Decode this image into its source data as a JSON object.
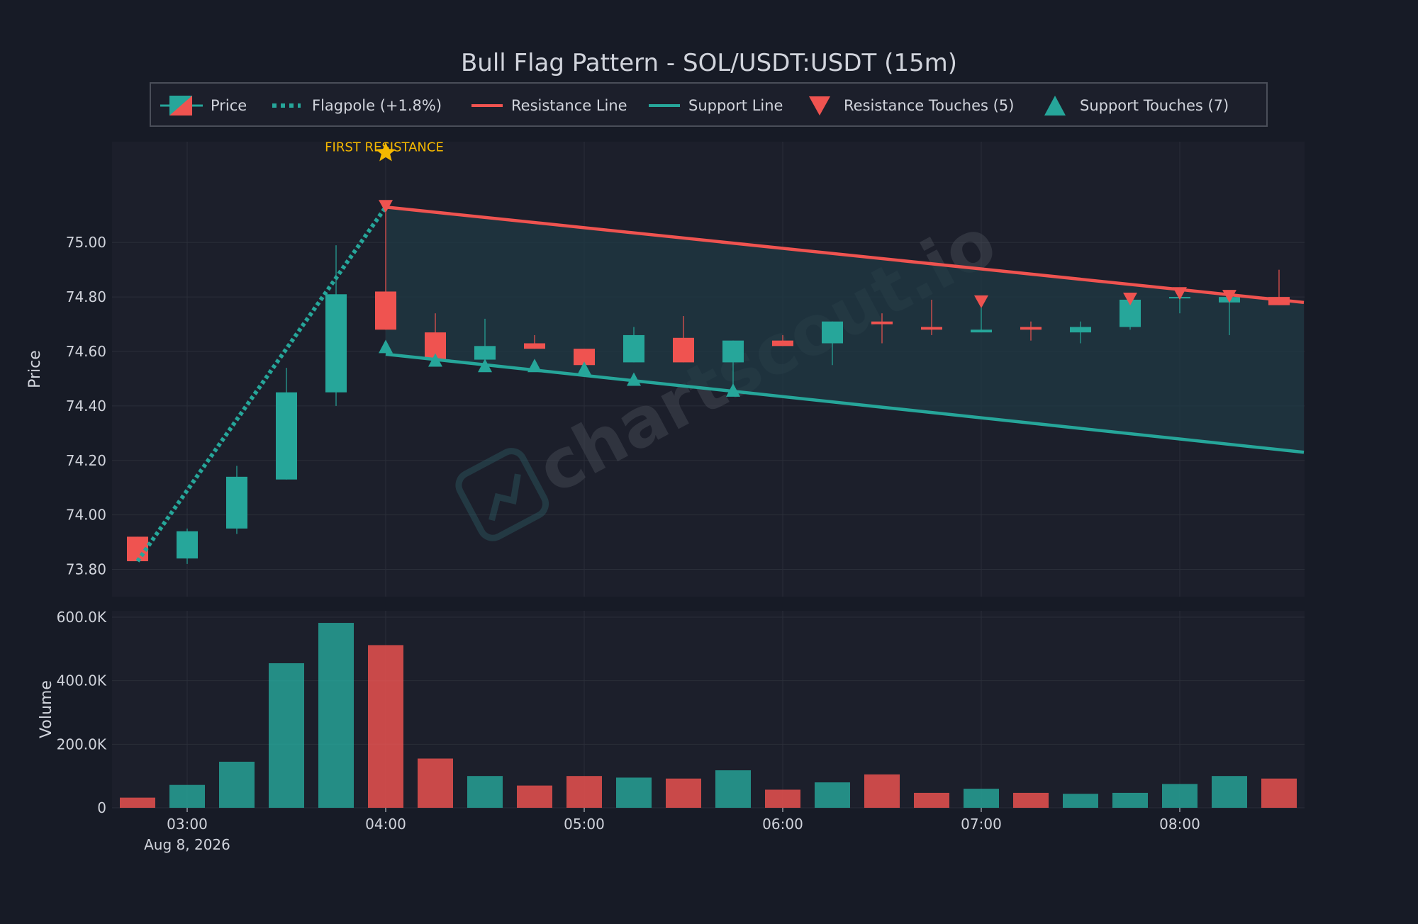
{
  "chart_data": {
    "type": "candlestick",
    "title": "Bull Flag Pattern - SOL/USDT:USDT (15m)",
    "ylabel": "Price",
    "volume_label": "Volume",
    "date_label": "Aug 8, 2026",
    "ylim": [
      73.7,
      75.37
    ],
    "volume_ylim": [
      0,
      620000
    ],
    "y_ticks": [
      {
        "value": 73.8,
        "label": "73.80"
      },
      {
        "value": 74.0,
        "label": "74.00"
      },
      {
        "value": 74.2,
        "label": "74.20"
      },
      {
        "value": 74.4,
        "label": "74.40"
      },
      {
        "value": 74.6,
        "label": "74.60"
      },
      {
        "value": 74.8,
        "label": "74.80"
      },
      {
        "value": 75.0,
        "label": "75.00"
      }
    ],
    "volume_ticks": [
      {
        "value": 0,
        "label": "0"
      },
      {
        "value": 200000,
        "label": "200.0K"
      },
      {
        "value": 400000,
        "label": "400.0K"
      },
      {
        "value": 600000,
        "label": "600.0K"
      }
    ],
    "x_ticks": [
      "03:00",
      "04:00",
      "05:00",
      "06:00",
      "07:00",
      "08:00"
    ],
    "legend": [
      {
        "key": "price",
        "label": "Price"
      },
      {
        "key": "flagpole",
        "label": "Flagpole (+1.8%)"
      },
      {
        "key": "resistance",
        "label": "Resistance Line"
      },
      {
        "key": "support",
        "label": "Support Line"
      },
      {
        "key": "res_touch",
        "label": "Resistance Touches (5)"
      },
      {
        "key": "sup_touch",
        "label": "Support Touches (7)"
      }
    ],
    "annotation": {
      "label": "FIRST RESISTANCE",
      "time": "04:00",
      "price": 75.33
    },
    "watermark": "chartscout.io",
    "colors": {
      "background": "#171b26",
      "panel": "#1c1f2b",
      "bull": "#26a69a",
      "bear": "#ef5350",
      "grid": "#2a2e39",
      "text": "#d1d4dc",
      "annotation": "#f5b800",
      "flag_fill": "#1f3a44"
    },
    "candles": [
      {
        "time": "02:45",
        "open": 73.92,
        "high": 73.92,
        "low": 73.83,
        "close": 73.83,
        "volume": 32000
      },
      {
        "time": "03:00",
        "open": 73.84,
        "high": 73.95,
        "low": 73.82,
        "close": 73.94,
        "volume": 72000
      },
      {
        "time": "03:15",
        "open": 73.95,
        "high": 74.18,
        "low": 73.93,
        "close": 74.14,
        "volume": 145000
      },
      {
        "time": "03:30",
        "open": 74.13,
        "high": 74.54,
        "low": 74.13,
        "close": 74.45,
        "volume": 455000
      },
      {
        "time": "03:45",
        "open": 74.45,
        "high": 74.99,
        "low": 74.4,
        "close": 74.81,
        "volume": 582000
      },
      {
        "time": "04:00",
        "open": 74.82,
        "high": 75.13,
        "low": 74.68,
        "close": 74.68,
        "volume": 512000
      },
      {
        "time": "04:15",
        "open": 74.67,
        "high": 74.74,
        "low": 74.57,
        "close": 74.57,
        "volume": 155000
      },
      {
        "time": "04:30",
        "open": 74.57,
        "high": 74.72,
        "low": 74.55,
        "close": 74.62,
        "volume": 100000
      },
      {
        "time": "04:45",
        "open": 74.63,
        "high": 74.66,
        "low": 74.61,
        "close": 74.61,
        "volume": 70000
      },
      {
        "time": "05:00",
        "open": 74.61,
        "high": 74.61,
        "low": 74.55,
        "close": 74.55,
        "volume": 100000
      },
      {
        "time": "05:15",
        "open": 74.56,
        "high": 74.69,
        "low": 74.56,
        "close": 74.66,
        "volume": 95000
      },
      {
        "time": "05:30",
        "open": 74.65,
        "high": 74.73,
        "low": 74.56,
        "close": 74.56,
        "volume": 92000
      },
      {
        "time": "05:45",
        "open": 74.56,
        "high": 74.64,
        "low": 74.45,
        "close": 74.64,
        "volume": 118000
      },
      {
        "time": "06:00",
        "open": 74.64,
        "high": 74.66,
        "low": 74.62,
        "close": 74.62,
        "volume": 57000
      },
      {
        "time": "06:15",
        "open": 74.63,
        "high": 74.71,
        "low": 74.55,
        "close": 74.71,
        "volume": 80000
      },
      {
        "time": "06:30",
        "open": 74.71,
        "high": 74.74,
        "low": 74.63,
        "close": 74.7,
        "volume": 105000
      },
      {
        "time": "06:45",
        "open": 74.69,
        "high": 74.79,
        "low": 74.66,
        "close": 74.68,
        "volume": 47000
      },
      {
        "time": "07:00",
        "open": 74.67,
        "high": 74.77,
        "low": 74.67,
        "close": 74.68,
        "volume": 60000
      },
      {
        "time": "07:15",
        "open": 74.69,
        "high": 74.71,
        "low": 74.64,
        "close": 74.68,
        "volume": 47000
      },
      {
        "time": "07:30",
        "open": 74.67,
        "high": 74.71,
        "low": 74.63,
        "close": 74.69,
        "volume": 44000
      },
      {
        "time": "07:45",
        "open": 74.69,
        "high": 74.8,
        "low": 74.68,
        "close": 74.79,
        "volume": 47000
      },
      {
        "time": "08:00",
        "open": 74.8,
        "high": 74.81,
        "low": 74.74,
        "close": 74.8,
        "volume": 75000
      },
      {
        "time": "08:15",
        "open": 74.78,
        "high": 74.81,
        "low": 74.66,
        "close": 74.8,
        "volume": 100000
      },
      {
        "time": "08:30",
        "open": 74.8,
        "high": 74.9,
        "low": 74.77,
        "close": 74.77,
        "volume": 92000
      }
    ],
    "flagpole": {
      "start": {
        "index": 0,
        "price": 73.83
      },
      "end": {
        "index": 5,
        "price": 75.13
      }
    },
    "resistance_line": {
      "start": {
        "index": 5,
        "price": 75.13
      },
      "end": {
        "index": 23.5,
        "price": 74.78
      }
    },
    "support_line": {
      "start": {
        "index": 5,
        "price": 74.59
      },
      "end": {
        "index": 23.5,
        "price": 74.23
      }
    },
    "resistance_touches": [
      {
        "index": 5,
        "price": 75.13
      },
      {
        "index": 17,
        "price": 74.78
      },
      {
        "index": 20,
        "price": 74.79
      },
      {
        "index": 21,
        "price": 74.81
      },
      {
        "index": 22,
        "price": 74.8
      }
    ],
    "support_touches": [
      {
        "index": 5,
        "price": 74.62
      },
      {
        "index": 6,
        "price": 74.57
      },
      {
        "index": 7,
        "price": 74.55
      },
      {
        "index": 8,
        "price": 74.55
      },
      {
        "index": 9,
        "price": 74.54
      },
      {
        "index": 10,
        "price": 74.5
      },
      {
        "index": 12,
        "price": 74.46
      }
    ]
  }
}
